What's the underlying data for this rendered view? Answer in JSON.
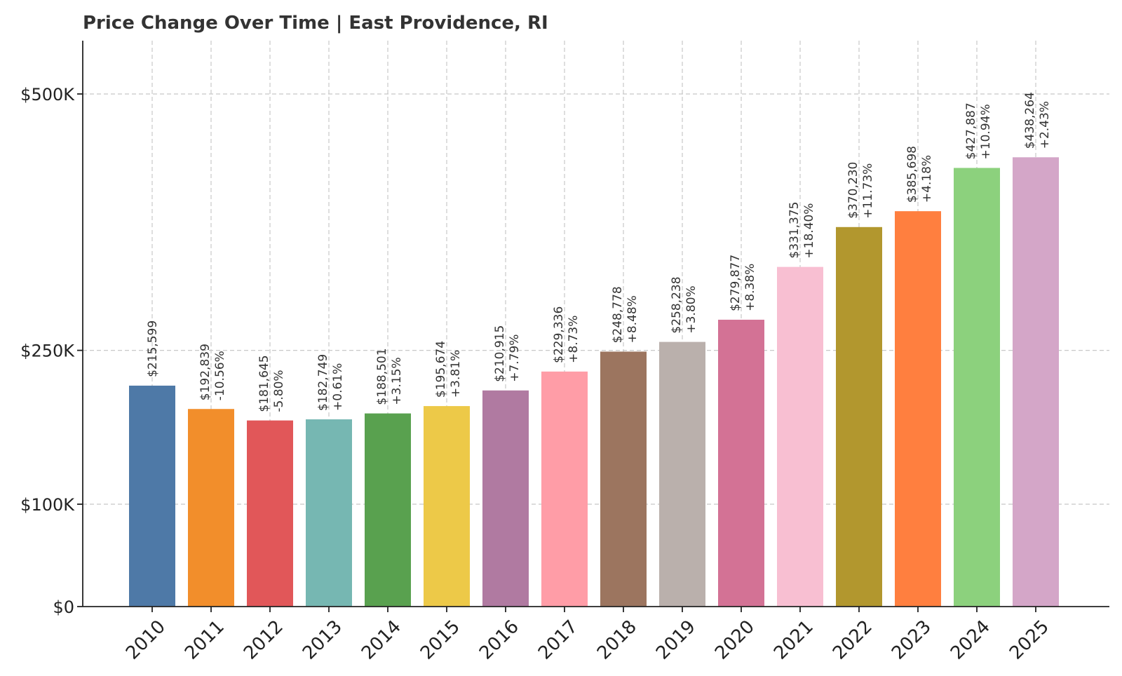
{
  "chart_data": {
    "type": "bar",
    "title": "Price Change Over Time | East Providence, RI",
    "xlabel": "",
    "ylabel": "",
    "y_scale": "piecewise (0–100K compressed, 100K–500K linear)",
    "ylim": [
      0,
      550000
    ],
    "yticks": [
      {
        "value": 0,
        "label": "$0"
      },
      {
        "value": 100000,
        "label": "$100K"
      },
      {
        "value": 250000,
        "label": "$250K"
      },
      {
        "value": 500000,
        "label": "$500K"
      }
    ],
    "grid": true,
    "categories": [
      "2010",
      "2011",
      "2012",
      "2013",
      "2014",
      "2015",
      "2016",
      "2017",
      "2018",
      "2019",
      "2020",
      "2021",
      "2022",
      "2023",
      "2024",
      "2025"
    ],
    "values": [
      215599,
      192839,
      181645,
      182749,
      188501,
      195674,
      210915,
      229336,
      248778,
      258238,
      279877,
      331375,
      370230,
      385698,
      427887,
      438264
    ],
    "value_labels": [
      "$215,599",
      "$192,839",
      "$181,645",
      "$182,749",
      "$188,501",
      "$195,674",
      "$210,915",
      "$229,336",
      "$248,778",
      "$258,238",
      "$279,877",
      "$331,375",
      "$370,230",
      "$385,698",
      "$427,887",
      "$438,264"
    ],
    "change_labels": [
      "",
      "-10.56%",
      "-5.80%",
      "+0.61%",
      "+3.15%",
      "+3.81%",
      "+7.79%",
      "+8.73%",
      "+8.48%",
      "+3.80%",
      "+8.38%",
      "+18.40%",
      "+11.73%",
      "+4.18%",
      "+10.94%",
      "+2.43%"
    ],
    "colors": [
      "#4e79a7",
      "#f28e2b",
      "#e15759",
      "#76b7b2",
      "#59a14f",
      "#edc948",
      "#b07aa1",
      "#ff9da7",
      "#9c755f",
      "#bab0ac",
      "#d37295",
      "#f8bfd2",
      "#b2972e",
      "#ff7f3f",
      "#8cd17d",
      "#d4a6c8"
    ]
  }
}
